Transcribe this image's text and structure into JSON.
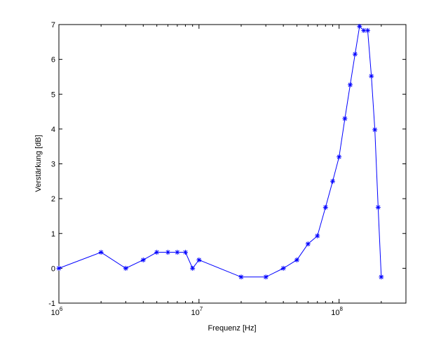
{
  "chart_data": {
    "type": "line",
    "xlabel": "Frequenz [Hz]",
    "ylabel": "Verstärkung [dB]",
    "xscale": "log",
    "xlim": [
      1000000,
      300000000
    ],
    "ylim": [
      -1,
      7
    ],
    "grid": false,
    "series": [
      {
        "color": "#0000ff",
        "marker": "asterisk",
        "x": [
          1000000,
          2000000,
          3000000,
          4000000,
          5000000,
          6000000,
          7000000,
          8000000,
          9000000,
          10000000,
          20000000,
          30000000,
          40000000,
          50000000,
          60000000,
          70000000,
          80000000,
          90000000,
          100000000,
          110000000,
          120000000,
          130000000,
          140000000,
          150000000,
          160000000,
          170000000,
          180000000,
          190000000,
          200000000
        ],
        "y": [
          0,
          0.46,
          0,
          0.24,
          0.46,
          0.46,
          0.46,
          0.46,
          0,
          0.24,
          -0.25,
          -0.25,
          0,
          0.24,
          0.7,
          0.93,
          1.75,
          2.5,
          3.2,
          4.3,
          5.27,
          6.15,
          6.95,
          6.83,
          6.83,
          5.52,
          3.98,
          1.75,
          -0.25
        ]
      }
    ],
    "xticks": [
      {
        "base": "10",
        "exp": "6"
      },
      {
        "base": "10",
        "exp": "7"
      },
      {
        "base": "10",
        "exp": "8"
      }
    ],
    "yticks": [
      "-1",
      "0",
      "1",
      "2",
      "3",
      "4",
      "5",
      "6",
      "7"
    ]
  }
}
